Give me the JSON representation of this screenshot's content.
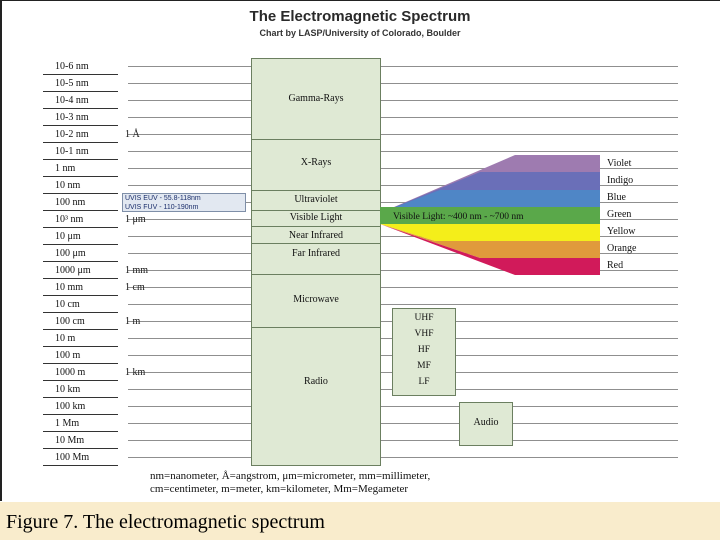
{
  "title": "The Electromagnetic Spectrum",
  "subtitle": "Chart by LASP/University of Colorado, Boulder",
  "wavelengths": [
    {
      "label": "10-6 nm",
      "alt": ""
    },
    {
      "label": "10-5 nm",
      "alt": ""
    },
    {
      "label": "10-4 nm",
      "alt": ""
    },
    {
      "label": "10-3 nm",
      "alt": ""
    },
    {
      "label": "10-2 nm",
      "alt": "1 Å"
    },
    {
      "label": "10-1 nm",
      "alt": ""
    },
    {
      "label": "1 nm",
      "alt": ""
    },
    {
      "label": "10 nm",
      "alt": ""
    },
    {
      "label": "100 nm",
      "alt": ""
    },
    {
      "label": "10³ nm",
      "alt": "1 μm"
    },
    {
      "label": "10 μm",
      "alt": ""
    },
    {
      "label": "100 μm",
      "alt": ""
    },
    {
      "label": "1000 μm",
      "alt": "1 mm"
    },
    {
      "label": "10 mm",
      "alt": "1 cm"
    },
    {
      "label": "10 cm",
      "alt": ""
    },
    {
      "label": "100 cm",
      "alt": "1 m"
    },
    {
      "label": "10 m",
      "alt": ""
    },
    {
      "label": "100 m",
      "alt": ""
    },
    {
      "label": "1000 m",
      "alt": "1 km"
    },
    {
      "label": "10 km",
      "alt": ""
    },
    {
      "label": "100 km",
      "alt": ""
    },
    {
      "label": "1 Mm",
      "alt": ""
    },
    {
      "label": "10 Mm",
      "alt": ""
    },
    {
      "label": "100 Mm",
      "alt": ""
    }
  ],
  "bands": [
    "Gamma-Rays",
    "X-Rays",
    "Ultraviolet",
    "Visible Light",
    "Near Infrared",
    "Far Infrared",
    "Microwave",
    "Radio"
  ],
  "uvis": [
    "UVIS EUV - 55.8-118nm",
    "UVIS FUV - 110-190nm"
  ],
  "visible_light_label": "Visible Light: ~400 nm - ~700 nm",
  "colors": [
    {
      "name": "Violet",
      "hex": "#9e7bb0"
    },
    {
      "name": "Indigo",
      "hex": "#6a6fb8"
    },
    {
      "name": "Blue",
      "hex": "#4f86c6"
    },
    {
      "name": "Green",
      "hex": "#5aa84a"
    },
    {
      "name": "Yellow",
      "hex": "#f4ee1a"
    },
    {
      "name": "Orange",
      "hex": "#e09a3c"
    },
    {
      "name": "Red",
      "hex": "#d11a5a"
    }
  ],
  "radio_subbands": [
    "UHF",
    "VHF",
    "HF",
    "MF",
    "LF"
  ],
  "audio": "Audio",
  "legend": [
    "nm=nanometer, Å=angstrom, μm=micrometer, mm=millimeter,",
    "cm=centimeter, m=meter, km=kilometer, Mm=Megameter"
  ],
  "caption": "Figure 7. The electromagnetic spectrum"
}
